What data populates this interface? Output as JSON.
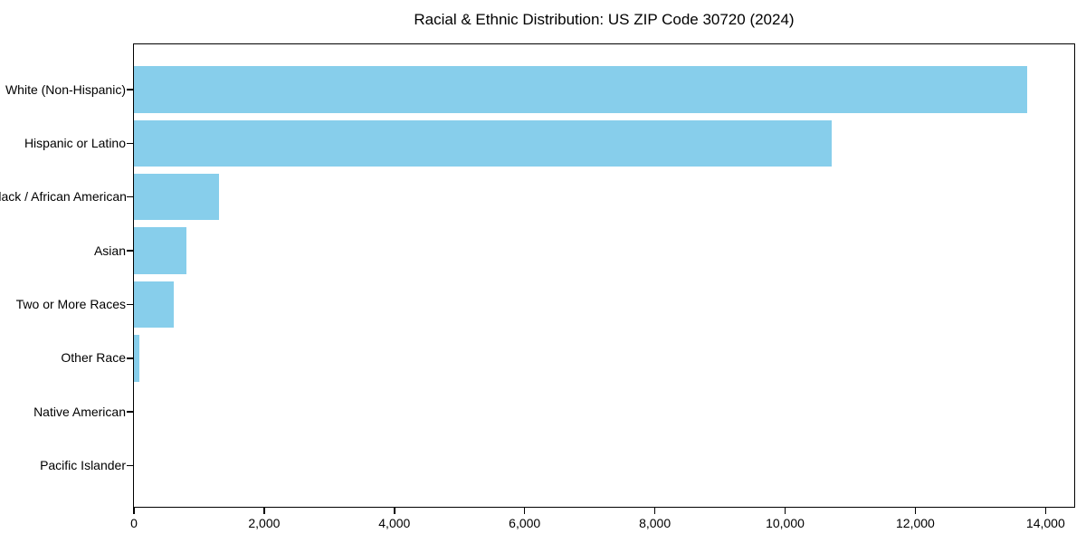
{
  "chart_data": {
    "type": "bar",
    "orientation": "horizontal",
    "title": "Racial & Ethnic Distribution: US ZIP Code 30720 (2024)",
    "categories": [
      "White (Non-Hispanic)",
      "Hispanic or Latino",
      "Black / African American",
      "Asian",
      "Two or More Races",
      "Other Race",
      "Native American",
      "Pacific Islander"
    ],
    "values": [
      13720,
      10710,
      1310,
      800,
      610,
      85,
      0,
      0
    ],
    "xlabel": "",
    "ylabel": "",
    "xlim": [
      0,
      14440
    ],
    "xticks": [
      0,
      2000,
      4000,
      6000,
      8000,
      10000,
      12000,
      14000
    ],
    "xtick_labels": [
      "0",
      "2,000",
      "4,000",
      "6,000",
      "8,000",
      "10,000",
      "12,000",
      "14,000"
    ],
    "bar_color": "#87CEEB",
    "axis_color": "#000000",
    "background_color": "#ffffff",
    "grid": false,
    "legend": null
  }
}
